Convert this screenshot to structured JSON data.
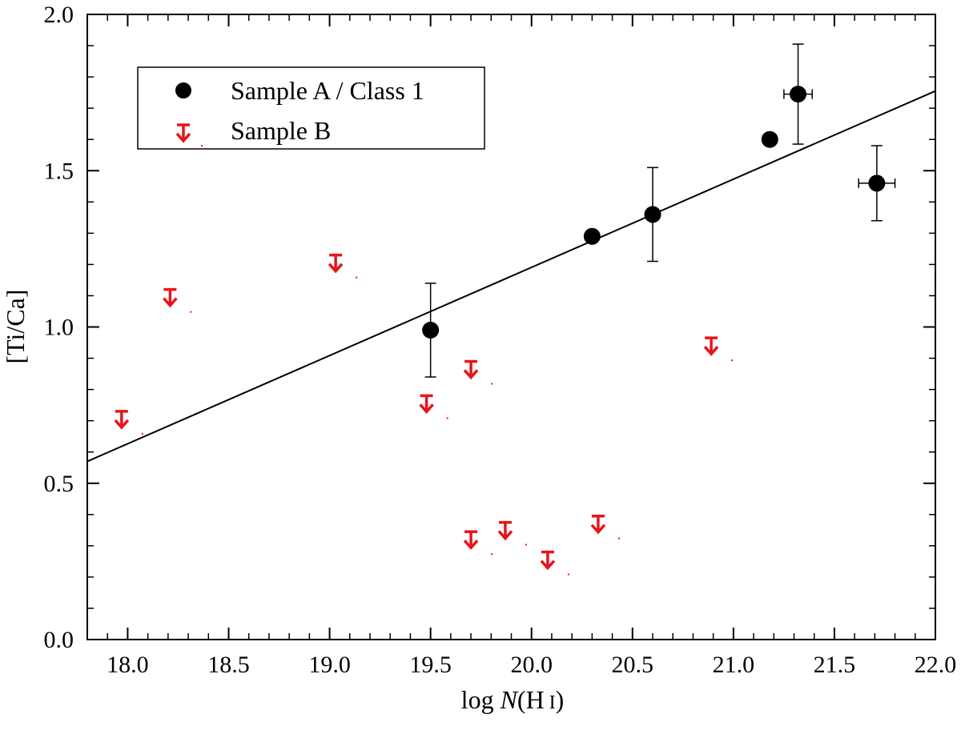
{
  "chart_data": {
    "type": "scatter",
    "title": "",
    "xlabel": {
      "prefix": "log ",
      "italic": "N",
      "suffix": "(H",
      "small": "I",
      "close": ")"
    },
    "ylabel": "[Ti/Ca]",
    "xlim": [
      17.8,
      22.0
    ],
    "ylim": [
      0.0,
      2.0
    ],
    "xticks": [
      18.0,
      18.5,
      19.0,
      19.5,
      20.0,
      20.5,
      21.0,
      21.5,
      22.0
    ],
    "xtick_labels": [
      "18.0",
      "18.5",
      "19.0",
      "19.5",
      "20.0",
      "20.5",
      "21.0",
      "21.5",
      "22.0"
    ],
    "yticks": [
      0.0,
      0.5,
      1.0,
      1.5,
      2.0
    ],
    "ytick_labels": [
      "0.0",
      "0.5",
      "1.0",
      "1.5",
      "2.0"
    ],
    "x_minor_step": 0.1,
    "y_minor_step": 0.1,
    "legend": {
      "placement": "top-left"
    },
    "series": [
      {
        "name": "Sample A / Class 1",
        "marker": "circle",
        "color": "#000000",
        "points": [
          {
            "x": 19.5,
            "y": 0.99,
            "yerr": 0.15,
            "xerr": 0
          },
          {
            "x": 20.3,
            "y": 1.29,
            "yerr": 0,
            "xerr": 0
          },
          {
            "x": 20.6,
            "y": 1.36,
            "yerr": 0.15,
            "xerr": 0
          },
          {
            "x": 21.18,
            "y": 1.6,
            "yerr": 0,
            "xerr": 0
          },
          {
            "x": 21.32,
            "y": 1.745,
            "yerr": 0.16,
            "xerr": 0.07
          },
          {
            "x": 21.71,
            "y": 1.46,
            "yerr": 0.12,
            "xerr": 0.09
          }
        ]
      },
      {
        "name": "Sample B",
        "marker": "upper-limit-arrow",
        "color": "#e8141b",
        "points": [
          {
            "x": 17.97,
            "y": 0.73
          },
          {
            "x": 18.21,
            "y": 1.12
          },
          {
            "x": 19.03,
            "y": 1.23
          },
          {
            "x": 19.48,
            "y": 0.78
          },
          {
            "x": 19.7,
            "y": 0.89
          },
          {
            "x": 19.7,
            "y": 0.345
          },
          {
            "x": 19.87,
            "y": 0.375
          },
          {
            "x": 20.08,
            "y": 0.28
          },
          {
            "x": 20.33,
            "y": 0.395
          },
          {
            "x": 20.89,
            "y": 0.965
          }
        ]
      }
    ],
    "fit_line": {
      "x": [
        17.8,
        22.0
      ],
      "y": [
        0.57,
        1.755
      ]
    }
  }
}
